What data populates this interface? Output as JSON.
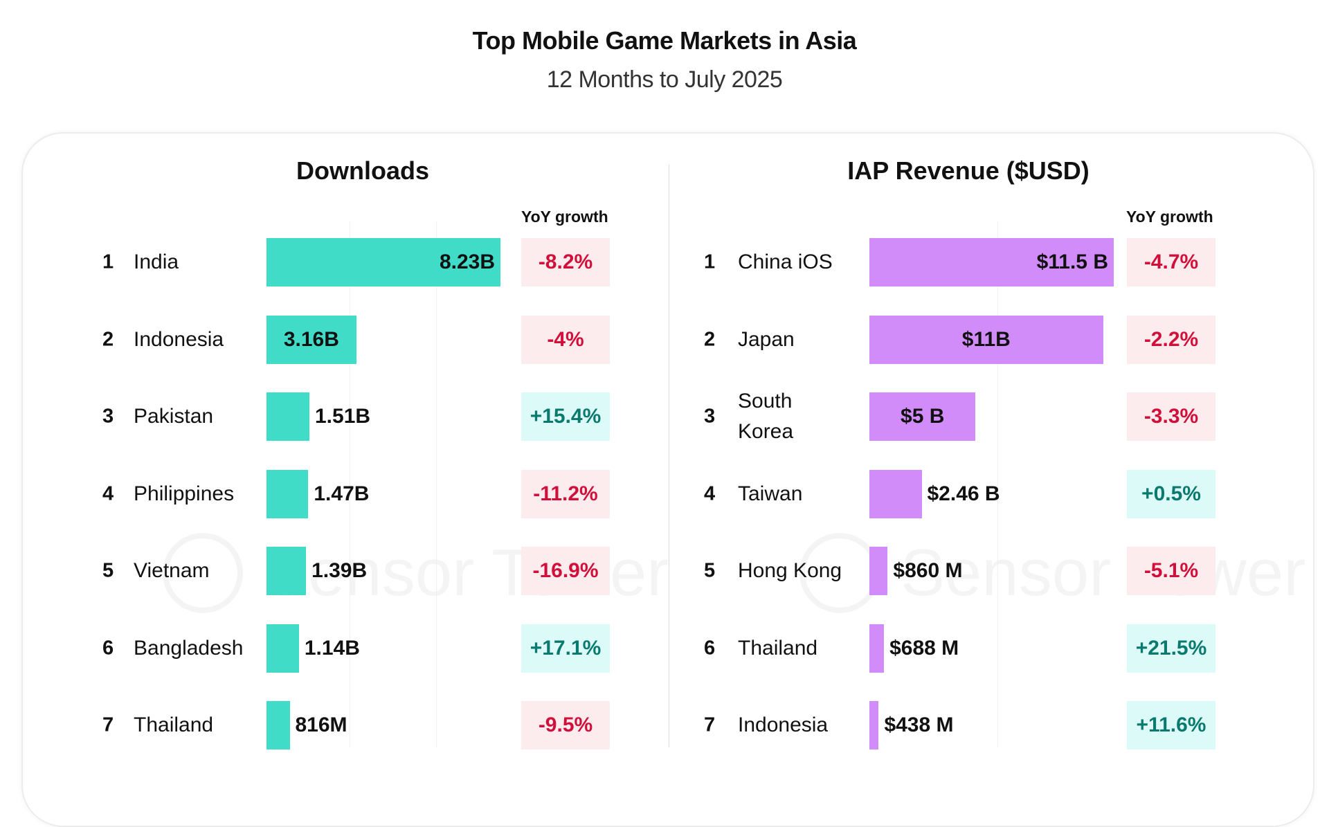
{
  "title": "Top Mobile Game Markets in Asia",
  "subtitle": "12 Months to July 2025",
  "watermark": "Sensor Tower",
  "colors": {
    "downloads_bar": "#40dcc8",
    "revenue_bar": "#d28cfa",
    "negative_text": "#d0103a",
    "negative_bg": "#fdecee",
    "positive_text": "#0b7a6e",
    "positive_bg": "#dcfaf7"
  },
  "chart_data": [
    {
      "type": "bar",
      "orientation": "horizontal",
      "title": "Downloads",
      "yoy_header": "YoY growth",
      "unit": "B",
      "ranks": [
        "1",
        "2",
        "3",
        "4",
        "5",
        "6",
        "7"
      ],
      "categories": [
        "India",
        "Indonesia",
        "Pakistan",
        "Philippines",
        "Vietnam",
        "Bangladesh",
        "Thailand"
      ],
      "values": [
        8.23,
        3.16,
        1.51,
        1.47,
        1.39,
        1.14,
        0.816
      ],
      "labels": [
        "8.23B",
        "3.16B",
        "1.51B",
        "1.47B",
        "1.39B",
        "1.14B",
        "816M"
      ],
      "yoy": [
        "-8.2%",
        "-4%",
        "+15.4%",
        "-11.2%",
        "-16.9%",
        "+17.1%",
        "-9.5%"
      ]
    },
    {
      "type": "bar",
      "orientation": "horizontal",
      "title": "IAP Revenue ($USD)",
      "yoy_header": "YoY growth",
      "unit": "B USD",
      "ranks": [
        "1",
        "2",
        "3",
        "4",
        "5",
        "6",
        "7"
      ],
      "categories": [
        "China iOS",
        "Japan",
        "South Korea",
        "Taiwan",
        "Hong Kong",
        "Thailand",
        "Indonesia"
      ],
      "values": [
        11.5,
        11,
        5,
        2.46,
        0.86,
        0.688,
        0.438
      ],
      "labels": [
        "$11.5 B",
        "$11B",
        "$5 B",
        "$2.46 B",
        "$860 M",
        "$688 M",
        "$438 M"
      ],
      "yoy": [
        "-4.7%",
        "-2.2%",
        "-3.3%",
        "+0.5%",
        "-5.1%",
        "+21.5%",
        "+11.6%"
      ]
    }
  ]
}
